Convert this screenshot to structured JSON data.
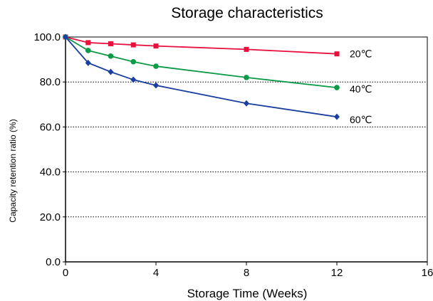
{
  "chart_data": {
    "type": "line",
    "title": "Storage characteristics",
    "xlabel": "Storage Time (Weeks)",
    "ylabel": "Capacity retention ratio (%)",
    "xlim": [
      0,
      16
    ],
    "ylim": [
      0,
      100
    ],
    "x_ticks": [
      "0",
      "4",
      "8",
      "12",
      "16"
    ],
    "y_ticks": [
      "0.0",
      "20.0",
      "40.0",
      "60.0",
      "80.0",
      "100.0"
    ],
    "grid": "horizontal dotted",
    "x": [
      0,
      1,
      2,
      3,
      4,
      8,
      12
    ],
    "series": [
      {
        "name": "20℃",
        "color": "#e8103c",
        "marker": "square",
        "values": [
          100,
          97.5,
          97,
          96.5,
          96,
          94.5,
          92.5
        ]
      },
      {
        "name": "40℃",
        "color": "#0b9a45",
        "marker": "circle",
        "values": [
          100,
          94,
          91.5,
          89,
          87,
          82,
          77.5
        ]
      },
      {
        "name": "60℃",
        "color": "#1a3f9e",
        "marker": "diamond",
        "values": [
          100,
          88.5,
          84.5,
          81,
          78.5,
          70.5,
          64.5
        ]
      }
    ]
  }
}
